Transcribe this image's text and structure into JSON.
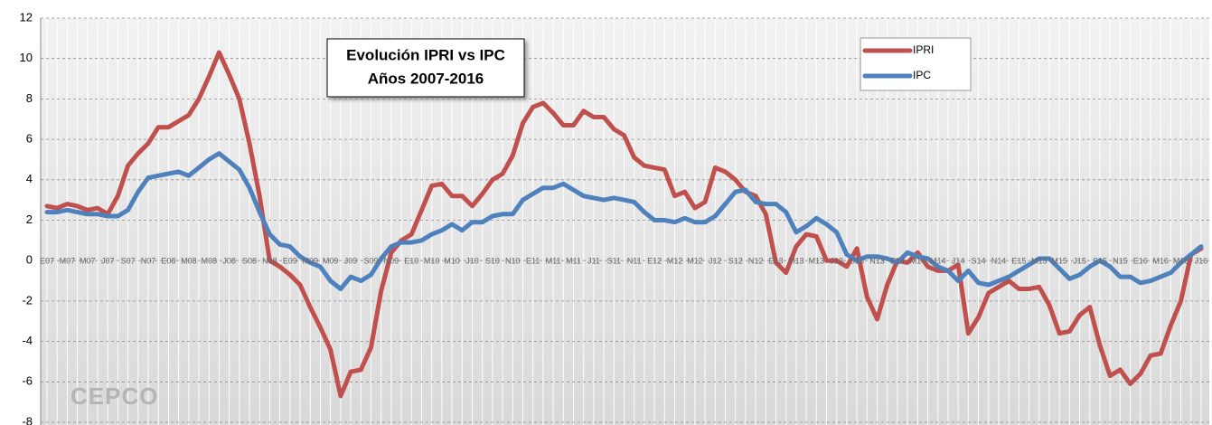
{
  "chart_data": {
    "type": "line",
    "title": "Evolución IPRI vs IPC",
    "subtitle": "Años 2007-2016",
    "logo_text": "CEPCO",
    "categories": [
      "E07",
      null,
      "M07",
      null,
      "M07",
      null,
      "J07",
      null,
      "S07",
      null,
      "N07",
      null,
      "E08",
      null,
      "M08",
      null,
      "M08",
      null,
      "J08",
      null,
      "S08",
      null,
      "N08",
      null,
      "E09",
      null,
      "M09",
      null,
      "M09",
      null,
      "J09",
      null,
      "S09",
      null,
      "N09",
      null,
      "E10",
      null,
      "M10",
      null,
      "M10",
      null,
      "J10",
      null,
      "S10",
      null,
      "N10",
      null,
      "E11",
      null,
      "M11",
      null,
      "M11",
      null,
      "J11",
      null,
      "S11",
      null,
      "N11",
      null,
      "E12",
      null,
      "M12",
      null,
      "M12",
      null,
      "J12",
      null,
      "S12",
      null,
      "N12",
      null,
      "E13",
      null,
      "M13",
      null,
      "M13",
      null,
      "J13",
      null,
      "S13",
      null,
      "N13",
      null,
      "E14",
      null,
      "M14",
      null,
      "M14",
      null,
      "J14",
      null,
      "S14",
      null,
      "N14",
      null,
      "E15",
      null,
      "M15",
      null,
      "M15",
      null,
      "J15",
      null,
      "S15",
      null,
      "N15",
      null,
      "E16",
      null,
      "M16",
      null,
      "M16",
      null,
      "J16"
    ],
    "series": [
      {
        "name": "IPRI",
        "color": "#c0504d",
        "values": [
          2.7,
          2.6,
          2.8,
          2.7,
          2.5,
          2.6,
          2.3,
          3.2,
          4.7,
          5.3,
          5.8,
          6.6,
          6.6,
          6.9,
          7.2,
          8.0,
          9.1,
          10.3,
          9.2,
          8.0,
          5.8,
          3.2,
          0.0,
          -0.3,
          -0.7,
          -1.2,
          -2.3,
          -3.3,
          -4.4,
          -6.7,
          -5.5,
          -5.4,
          -4.3,
          -1.5,
          0.4,
          1.0,
          1.3,
          2.5,
          3.7,
          3.8,
          3.2,
          3.2,
          2.7,
          3.3,
          4.0,
          4.3,
          5.2,
          6.8,
          7.6,
          7.8,
          7.3,
          6.7,
          6.7,
          7.4,
          7.1,
          7.1,
          6.5,
          6.2,
          5.1,
          4.7,
          4.6,
          4.5,
          3.2,
          3.4,
          2.6,
          2.9,
          4.6,
          4.4,
          4.0,
          3.4,
          3.2,
          2.3,
          -0.1,
          -0.6,
          0.7,
          1.3,
          1.2,
          0.0,
          0.0,
          -0.3,
          0.6,
          -1.8,
          -2.9,
          -1.2,
          0.0,
          -0.1,
          0.4,
          -0.3,
          -0.5,
          -0.5,
          -0.2,
          -3.6,
          -2.8,
          -1.6,
          -1.3,
          -1.0,
          -1.4,
          -1.4,
          -1.3,
          -2.2,
          -3.6,
          -3.5,
          -2.7,
          -2.3,
          -4.2,
          -5.7,
          -5.4,
          -6.1,
          -5.6,
          -4.7,
          -4.6,
          -3.2,
          -2.0,
          0.3,
          0.6
        ]
      },
      {
        "name": "IPC",
        "color": "#4f81bd",
        "values": [
          2.4,
          2.4,
          2.5,
          2.4,
          2.3,
          2.3,
          2.2,
          2.2,
          2.5,
          3.4,
          4.1,
          4.2,
          4.3,
          4.4,
          4.2,
          4.6,
          5.0,
          5.3,
          4.9,
          4.5,
          3.6,
          2.4,
          1.3,
          0.8,
          0.7,
          0.2,
          -0.1,
          -0.3,
          -1.0,
          -1.4,
          -0.8,
          -1.0,
          -0.7,
          0.1,
          0.7,
          0.9,
          0.9,
          1.0,
          1.3,
          1.5,
          1.8,
          1.5,
          1.9,
          1.9,
          2.2,
          2.3,
          2.3,
          3.0,
          3.3,
          3.6,
          3.6,
          3.8,
          3.5,
          3.2,
          3.1,
          3.0,
          3.1,
          3.0,
          2.9,
          2.4,
          2.0,
          2.0,
          1.9,
          2.1,
          1.9,
          1.9,
          2.2,
          2.8,
          3.4,
          3.5,
          2.9,
          2.8,
          2.8,
          2.4,
          1.4,
          1.7,
          2.1,
          1.8,
          1.4,
          0.3,
          0.0,
          0.2,
          0.2,
          0.1,
          -0.1,
          0.4,
          0.2,
          0.1,
          -0.3,
          -0.5,
          -1.0,
          -0.5,
          -1.1,
          -1.2,
          -1.0,
          -0.8,
          -0.5,
          -0.2,
          0.1,
          0.1,
          -0.4,
          -0.9,
          -0.7,
          -0.3,
          0.0,
          -0.3,
          -0.8,
          -0.8,
          -1.1,
          -1.0,
          -0.8,
          -0.6,
          -0.1,
          0.3,
          0.7
        ]
      }
    ],
    "ylim": [
      -8,
      12
    ],
    "yticks": [
      -8,
      -6,
      -4,
      -2,
      0,
      2,
      4,
      6,
      8,
      10,
      12
    ],
    "grid": true,
    "legend": "top-right"
  }
}
